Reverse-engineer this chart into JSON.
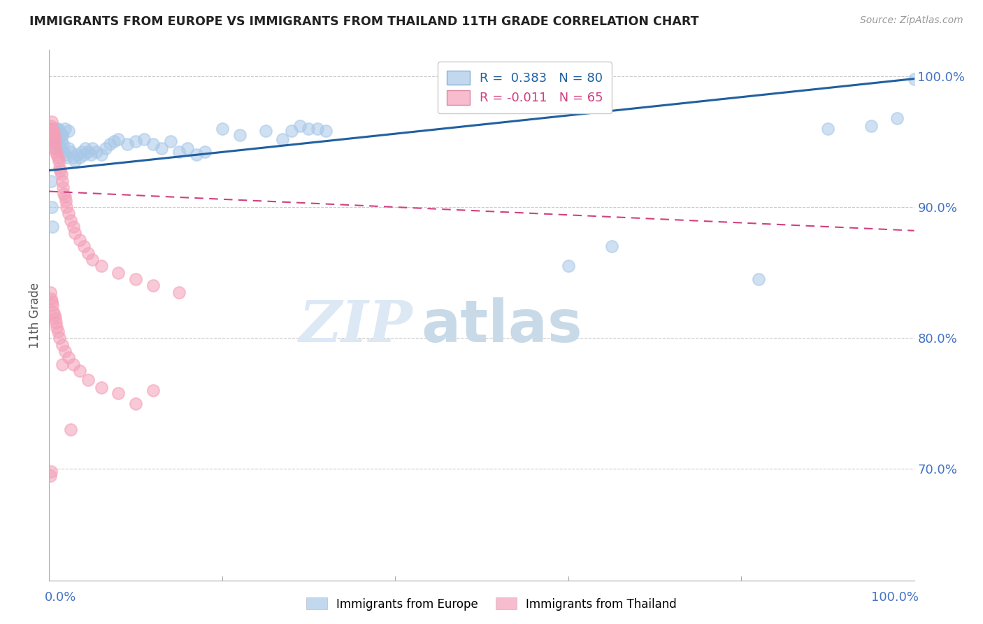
{
  "title": "IMMIGRANTS FROM EUROPE VS IMMIGRANTS FROM THAILAND 11TH GRADE CORRELATION CHART",
  "source": "Source: ZipAtlas.com",
  "ylabel": "11th Grade",
  "ytick_labels": [
    "100.0%",
    "90.0%",
    "80.0%",
    "70.0%"
  ],
  "ytick_positions": [
    1.0,
    0.9,
    0.8,
    0.7
  ],
  "legend_blue": "R =  0.383   N = 80",
  "legend_pink": "R = -0.011   N = 65",
  "blue_color": "#a8c8e8",
  "pink_color": "#f4a0b8",
  "blue_line_color": "#2060a0",
  "pink_line_color": "#d04080",
  "watermark_zip": "ZIP",
  "watermark_atlas": "atlas",
  "tick_color": "#4472c4",
  "grid_color": "#cccccc",
  "background_color": "#ffffff",
  "blue_x": [
    0.001,
    0.002,
    0.003,
    0.003,
    0.004,
    0.005,
    0.005,
    0.006,
    0.007,
    0.008,
    0.009,
    0.01,
    0.011,
    0.012,
    0.013,
    0.014,
    0.015,
    0.016,
    0.017,
    0.018,
    0.02,
    0.022,
    0.025,
    0.028,
    0.03,
    0.032,
    0.035,
    0.038,
    0.04,
    0.042,
    0.045,
    0.048,
    0.05,
    0.055,
    0.06,
    0.065,
    0.07,
    0.075,
    0.08,
    0.09,
    0.1,
    0.11,
    0.12,
    0.13,
    0.14,
    0.15,
    0.16,
    0.17,
    0.18,
    0.2,
    0.22,
    0.25,
    0.27,
    0.3,
    0.28,
    0.29,
    0.31,
    0.32,
    0.003,
    0.004,
    0.005,
    0.006,
    0.007,
    0.008,
    0.009,
    0.01,
    0.012,
    0.015,
    0.018,
    0.022,
    0.6,
    0.65,
    0.82,
    0.9,
    0.95,
    0.98,
    1.0,
    0.002,
    0.003,
    0.004
  ],
  "blue_y": [
    0.96,
    0.955,
    0.958,
    0.952,
    0.956,
    0.95,
    0.948,
    0.945,
    0.955,
    0.96,
    0.958,
    0.952,
    0.955,
    0.948,
    0.945,
    0.95,
    0.955,
    0.948,
    0.942,
    0.94,
    0.938,
    0.945,
    0.942,
    0.938,
    0.935,
    0.94,
    0.938,
    0.942,
    0.94,
    0.945,
    0.942,
    0.94,
    0.945,
    0.942,
    0.94,
    0.945,
    0.948,
    0.95,
    0.952,
    0.948,
    0.95,
    0.952,
    0.948,
    0.945,
    0.95,
    0.942,
    0.945,
    0.94,
    0.942,
    0.96,
    0.955,
    0.958,
    0.952,
    0.96,
    0.958,
    0.962,
    0.96,
    0.958,
    0.96,
    0.958,
    0.955,
    0.96,
    0.958,
    0.955,
    0.958,
    0.96,
    0.958,
    0.955,
    0.96,
    0.958,
    0.855,
    0.87,
    0.845,
    0.96,
    0.962,
    0.968,
    0.998,
    0.92,
    0.9,
    0.885
  ],
  "pink_x": [
    0.001,
    0.001,
    0.002,
    0.002,
    0.003,
    0.003,
    0.004,
    0.004,
    0.005,
    0.005,
    0.006,
    0.006,
    0.007,
    0.007,
    0.008,
    0.009,
    0.01,
    0.011,
    0.012,
    0.013,
    0.014,
    0.015,
    0.016,
    0.017,
    0.018,
    0.019,
    0.02,
    0.022,
    0.025,
    0.028,
    0.03,
    0.035,
    0.04,
    0.045,
    0.05,
    0.06,
    0.08,
    0.1,
    0.12,
    0.15,
    0.001,
    0.002,
    0.003,
    0.004,
    0.005,
    0.006,
    0.007,
    0.008,
    0.009,
    0.01,
    0.012,
    0.015,
    0.018,
    0.022,
    0.028,
    0.035,
    0.045,
    0.06,
    0.08,
    0.1,
    0.001,
    0.002,
    0.12,
    0.015,
    0.025
  ],
  "pink_y": [
    0.96,
    0.955,
    0.962,
    0.958,
    0.965,
    0.96,
    0.958,
    0.955,
    0.958,
    0.952,
    0.955,
    0.95,
    0.948,
    0.945,
    0.942,
    0.94,
    0.938,
    0.935,
    0.93,
    0.928,
    0.925,
    0.92,
    0.915,
    0.91,
    0.908,
    0.905,
    0.9,
    0.895,
    0.89,
    0.885,
    0.88,
    0.875,
    0.87,
    0.865,
    0.86,
    0.855,
    0.85,
    0.845,
    0.84,
    0.835,
    0.835,
    0.83,
    0.828,
    0.825,
    0.82,
    0.818,
    0.815,
    0.812,
    0.808,
    0.805,
    0.8,
    0.795,
    0.79,
    0.785,
    0.78,
    0.775,
    0.768,
    0.762,
    0.758,
    0.75,
    0.695,
    0.698,
    0.76,
    0.78,
    0.73
  ],
  "blue_R": 0.383,
  "blue_N": 80,
  "pink_R": -0.011,
  "pink_N": 65,
  "xlim": [
    0.0,
    1.0
  ],
  "ylim": [
    0.615,
    1.02
  ]
}
